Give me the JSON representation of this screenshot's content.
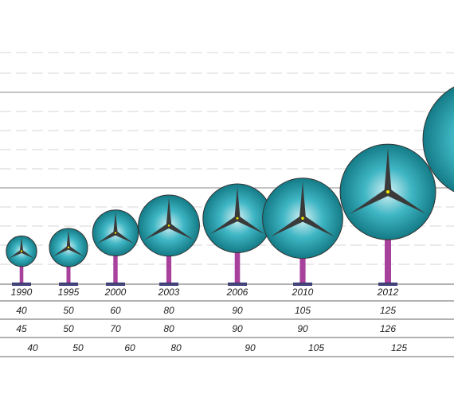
{
  "colors": {
    "rotor_edge": "#0b6f7a",
    "rotor_center": "#d8f2f5",
    "rotor_mid": "#3fb6c4",
    "blade": "#3a3a3a",
    "hub": "#f2e600",
    "tower": "#a8419c",
    "base": "#2a2a7a",
    "gridline": "#cfcfcf",
    "refline": "#777777"
  },
  "turbines": [
    {
      "year": "1990",
      "row1": "40",
      "row2": "45",
      "row3": "40",
      "rotor_m": 40,
      "hub_m": 45
    },
    {
      "year": "1995",
      "row1": "50",
      "row2": "50",
      "row3": "50",
      "rotor_m": 50,
      "hub_m": 50
    },
    {
      "year": "2000",
      "row1": "60",
      "row2": "70",
      "row3": "60",
      "rotor_m": 60,
      "hub_m": 70
    },
    {
      "year": "2003",
      "row1": "80",
      "row2": "80",
      "row3": "80",
      "rotor_m": 80,
      "hub_m": 80
    },
    {
      "year": "2006",
      "row1": "90",
      "row2": "90",
      "row3": "90",
      "rotor_m": 90,
      "hub_m": 90
    },
    {
      "year": "2010",
      "row1": "105",
      "row2": "90",
      "row3": "105",
      "rotor_m": 105,
      "hub_m": 90
    },
    {
      "year": "2012",
      "row1": "125",
      "row2": "126",
      "row3": "125",
      "rotor_m": 125,
      "hub_m": 126
    }
  ]
}
